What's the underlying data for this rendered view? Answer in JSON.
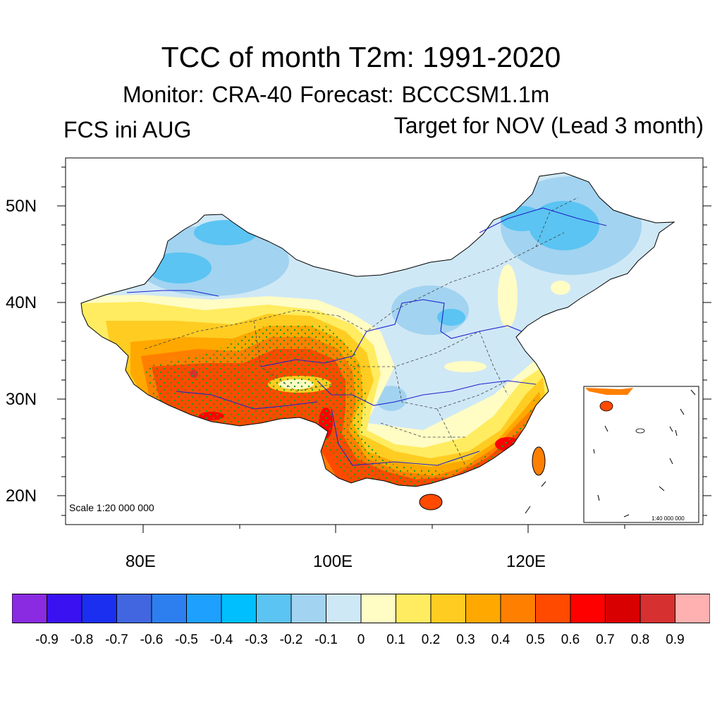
{
  "title": "TCC of month T2m: 1991-2020",
  "subtitle": "Monitor: CRA-40   Forecast: BCCCSM1.1m",
  "left_label": "FCS ini AUG",
  "right_label": "Target for NOV (Lead 3 month)",
  "map": {
    "lat_labels": [
      "50N",
      "40N",
      "30N",
      "20N"
    ],
    "lon_labels": [
      "80E",
      "100E",
      "120E"
    ],
    "scale_text": "Scale 1:20 000 000",
    "inset_scale_text": "1:40 000 000"
  },
  "colorbar": {
    "colors": [
      "#8a2be2",
      "#3a12f2",
      "#1a2ff0",
      "#4166e0",
      "#2d7ff0",
      "#1ea0ff",
      "#00bfff",
      "#5bc4f2",
      "#a2d3f0",
      "#cfe8f6",
      "#fffcc4",
      "#ffec60",
      "#ffcc22",
      "#ffa800",
      "#ff7f00",
      "#ff4a00",
      "#ff0000",
      "#d80000",
      "#d63030",
      "#ffb0b0"
    ],
    "labels": [
      "-0.9",
      "-0.8",
      "-0.7",
      "-0.6",
      "-0.5",
      "-0.4",
      "-0.3",
      "-0.2",
      "-0.1",
      "0",
      "0.1",
      "0.2",
      "0.3",
      "0.4",
      "0.5",
      "0.6",
      "0.7",
      "0.8",
      "0.9"
    ]
  }
}
